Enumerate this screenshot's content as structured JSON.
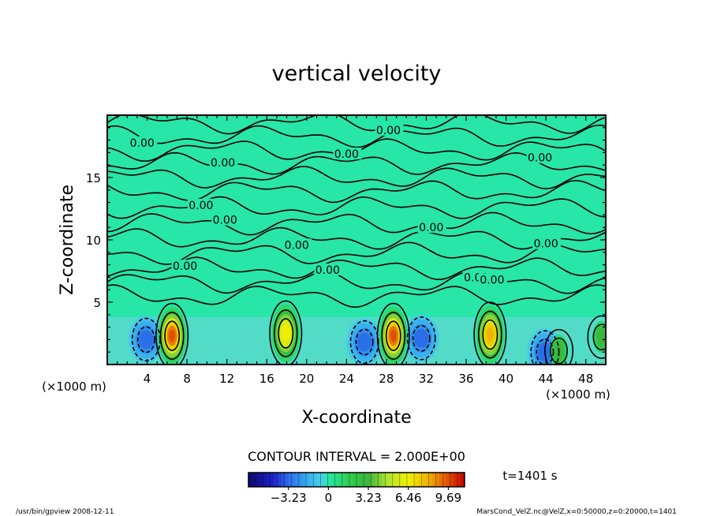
{
  "chart_data": {
    "type": "heatmap",
    "title": "vertical velocity",
    "xlabel": "X-coordinate",
    "ylabel": "Z-coordinate",
    "x_unit_left": "(×1000 m)",
    "x_unit_right": "(×1000 m)",
    "xlim": [
      0,
      50
    ],
    "ylim": [
      0,
      20
    ],
    "x_ticks": [
      "4",
      "8",
      "12",
      "16",
      "20",
      "24",
      "28",
      "32",
      "36",
      "40",
      "44",
      "48"
    ],
    "y_ticks": [
      "5",
      "10",
      "15"
    ],
    "contour_interval_label": "CONTOUR INTERVAL = 2.000E+00",
    "contour_labels": [
      "0.00",
      "0.00",
      "0.00",
      "0.00",
      "0.00",
      "0.00",
      "0.00",
      "0.00",
      "0.00",
      "0.00",
      "0.00",
      "0.00",
      "0.00",
      "0.00"
    ],
    "colorbar": {
      "tick_labels": [
        "−3.23",
        "0",
        "3.23",
        "6.46",
        "9.69"
      ],
      "ticks": [
        -3.23,
        0,
        3.23,
        6.46,
        9.69
      ],
      "range": [
        -6.46,
        11.0
      ],
      "time_label": "t=1401 s"
    },
    "updraft_cores": [
      {
        "x": 6.5,
        "z": 2.3,
        "w": 9.7
      },
      {
        "x": 17.9,
        "z": 2.5,
        "w": 6.5
      },
      {
        "x": 28.7,
        "z": 2.3,
        "w": 9.7
      },
      {
        "x": 38.4,
        "z": 2.4,
        "w": 8.0
      },
      {
        "x": 45.3,
        "z": 1.1,
        "w": 3.2
      },
      {
        "x": 49.6,
        "z": 2.2,
        "w": 3.2
      }
    ],
    "downdraft_cores": [
      {
        "x": 3.9,
        "z": 2.0,
        "w": -3.2
      },
      {
        "x": 25.8,
        "z": 1.8,
        "w": -3.2
      },
      {
        "x": 31.5,
        "z": 2.1,
        "w": -3.2
      },
      {
        "x": 43.9,
        "z": 1.0,
        "w": -3.2
      }
    ],
    "background_value": 0.0
  },
  "footer": {
    "left": "/usr/bin/gpview   2008-12-11",
    "right": "MarsCond_VelZ.nc@VelZ,x=0:50000,z=0:20000,t=1401"
  },
  "colors": {
    "background_field": "#27e6a8",
    "plot_frame": "#000000"
  }
}
